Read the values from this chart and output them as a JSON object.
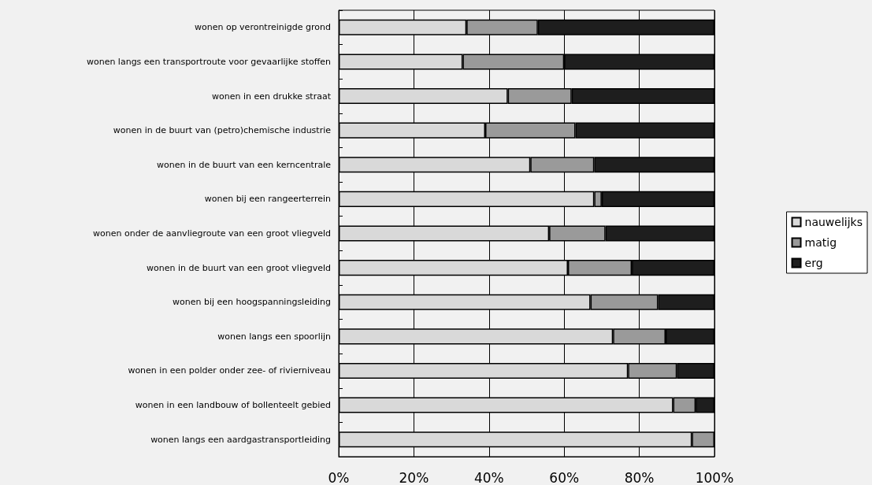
{
  "chart_data": {
    "type": "bar",
    "orientation": "horizontal",
    "stacked": true,
    "categories": [
      "wonen op verontreinigde grond",
      "wonen langs een transportroute voor gevaarlijke stoffen",
      "wonen in een drukke straat",
      "wonen in de buurt van (petro)chemische industrie",
      "wonen in de buurt van een kerncentrale",
      "wonen bij een rangeerterrein",
      "wonen onder de aanvliegroute van een groot vliegveld",
      "wonen in de buurt van een groot vliegveld",
      "wonen bij een hoogspanningsleiding",
      "wonen langs een spoorlijn",
      "wonen in een polder onder zee- of rivierniveau",
      "wonen in een landbouw of bollenteelt gebied",
      "wonen langs een aardgastransportleiding"
    ],
    "series": [
      {
        "name": "nauwelijks",
        "color": "#d9d9d9",
        "values": [
          34,
          33,
          45,
          39,
          51,
          68,
          56,
          61,
          67,
          73,
          77,
          89,
          94
        ]
      },
      {
        "name": "matig",
        "color": "#9a9a9a",
        "values": [
          19,
          27,
          17,
          24,
          17,
          2,
          15,
          17,
          18,
          14,
          13,
          6,
          6
        ]
      },
      {
        "name": "erg",
        "color": "#1e1e1e",
        "values": [
          47,
          40,
          38,
          37,
          32,
          30,
          29,
          22,
          15,
          13,
          10,
          5,
          0
        ]
      }
    ],
    "xlim": [
      0,
      100
    ],
    "xticks": [
      {
        "value": 0,
        "label": "0%"
      },
      {
        "value": 20,
        "label": "20%"
      },
      {
        "value": 40,
        "label": "40%"
      },
      {
        "value": 60,
        "label": "60%"
      },
      {
        "value": 80,
        "label": "80%"
      },
      {
        "value": 100,
        "label": "100%"
      }
    ],
    "grid": "x",
    "legend": "right"
  }
}
